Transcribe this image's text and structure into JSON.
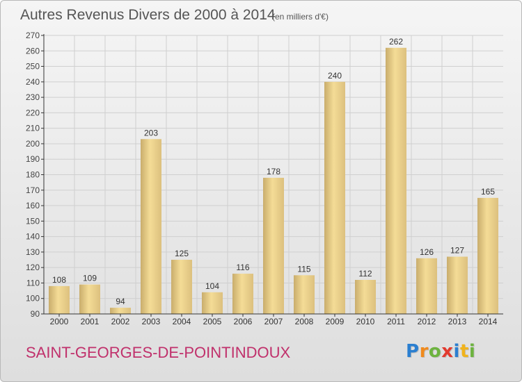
{
  "chart_data": {
    "type": "bar",
    "title": "Autres Revenus Divers de 2000 à 2014",
    "subtitle": "(en milliers d'€)",
    "categories": [
      "2000",
      "2001",
      "2002",
      "2003",
      "2004",
      "2005",
      "2006",
      "2007",
      "2008",
      "2009",
      "2010",
      "2011",
      "2012",
      "2013",
      "2014"
    ],
    "values": [
      108,
      109,
      94,
      203,
      125,
      104,
      116,
      178,
      115,
      240,
      112,
      262,
      126,
      127,
      165
    ],
    "ylim": [
      90,
      270
    ],
    "yticks": [
      90,
      100,
      110,
      120,
      130,
      140,
      150,
      160,
      170,
      180,
      190,
      200,
      210,
      220,
      230,
      240,
      250,
      260,
      270
    ],
    "grid": true,
    "colors": {
      "bar_light": "#f4dc96",
      "bar_dark": "#c9ad6c",
      "axis": "#333333",
      "grid": "#cfcfcf"
    }
  },
  "footer": {
    "commune": "SAINT-GEORGES-DE-POINTINDOUX",
    "commune_color": "#c0306b"
  },
  "logo": {
    "letters": [
      "P",
      "r",
      "o",
      "x",
      "i",
      "t",
      "i"
    ],
    "colors": [
      "#2b7fd0",
      "#f08a1d",
      "#6db33f",
      "#e23a2e",
      "#2b7fd0",
      "#f0b31d",
      "#6db33f"
    ]
  }
}
